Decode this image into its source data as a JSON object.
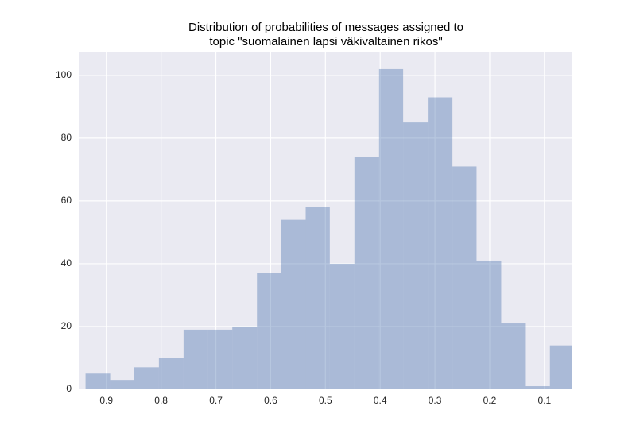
{
  "chart_data": {
    "type": "histogram",
    "title": [
      "Distribution of probabilities of messages assigned to",
      "topic \"suomalainen lapsi väkivaltainen rikos\""
    ],
    "bins": [
      0.045,
      0.09,
      0.134,
      0.179,
      0.224,
      0.268,
      0.313,
      0.358,
      0.402,
      0.447,
      0.492,
      0.536,
      0.581,
      0.625,
      0.67,
      0.715,
      0.759,
      0.804,
      0.849,
      0.893,
      0.938
    ],
    "values": [
      14,
      1,
      21,
      41,
      71,
      93,
      85,
      102,
      74,
      40,
      58,
      54,
      37,
      20,
      19,
      19,
      10,
      7,
      3,
      5
    ],
    "color": "#4c72b0",
    "opacity": 0.4,
    "xlim": [
      0.949,
      0.049
    ],
    "xticks": [
      0.9,
      0.8,
      0.7,
      0.6,
      0.5,
      0.4,
      0.3,
      0.2,
      0.1
    ],
    "ylim": [
      0,
      107.3
    ],
    "yticks": [
      0,
      20,
      40,
      60,
      80,
      100
    ],
    "grid": true
  }
}
